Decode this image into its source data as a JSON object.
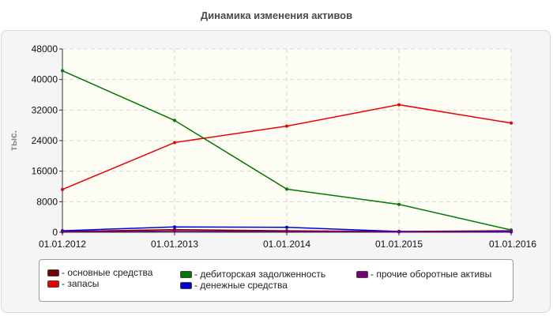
{
  "chart_data": {
    "type": "line",
    "title": "Динамика изменения активов",
    "ylabel": "тыс.",
    "xlabel": "",
    "x": [
      "01.01.2012",
      "01.01.2013",
      "01.01.2014",
      "01.01.2015",
      "01.01.2016"
    ],
    "yticks": [
      "0",
      "8000",
      "16000",
      "24000",
      "32000",
      "40000",
      "48000"
    ],
    "ylim": [
      0,
      48000
    ],
    "grid": true,
    "legend_position": "bottom",
    "series": [
      {
        "name": "основные средства",
        "color": "#7a0000",
        "values": [
          200,
          700,
          400,
          200,
          400
        ]
      },
      {
        "name": "запасы",
        "color": "#ee0000",
        "values": [
          11200,
          23500,
          27800,
          33400,
          28600
        ]
      },
      {
        "name": "дебиторская задолженность",
        "color": "#007700",
        "values": [
          42300,
          29300,
          11300,
          7300,
          600
        ]
      },
      {
        "name": "денежные средства",
        "color": "#0000dd",
        "values": [
          400,
          1400,
          1300,
          200,
          100
        ]
      },
      {
        "name": "прочие оборотные активы",
        "color": "#770077",
        "values": [
          100,
          300,
          200,
          100,
          300
        ]
      }
    ]
  }
}
